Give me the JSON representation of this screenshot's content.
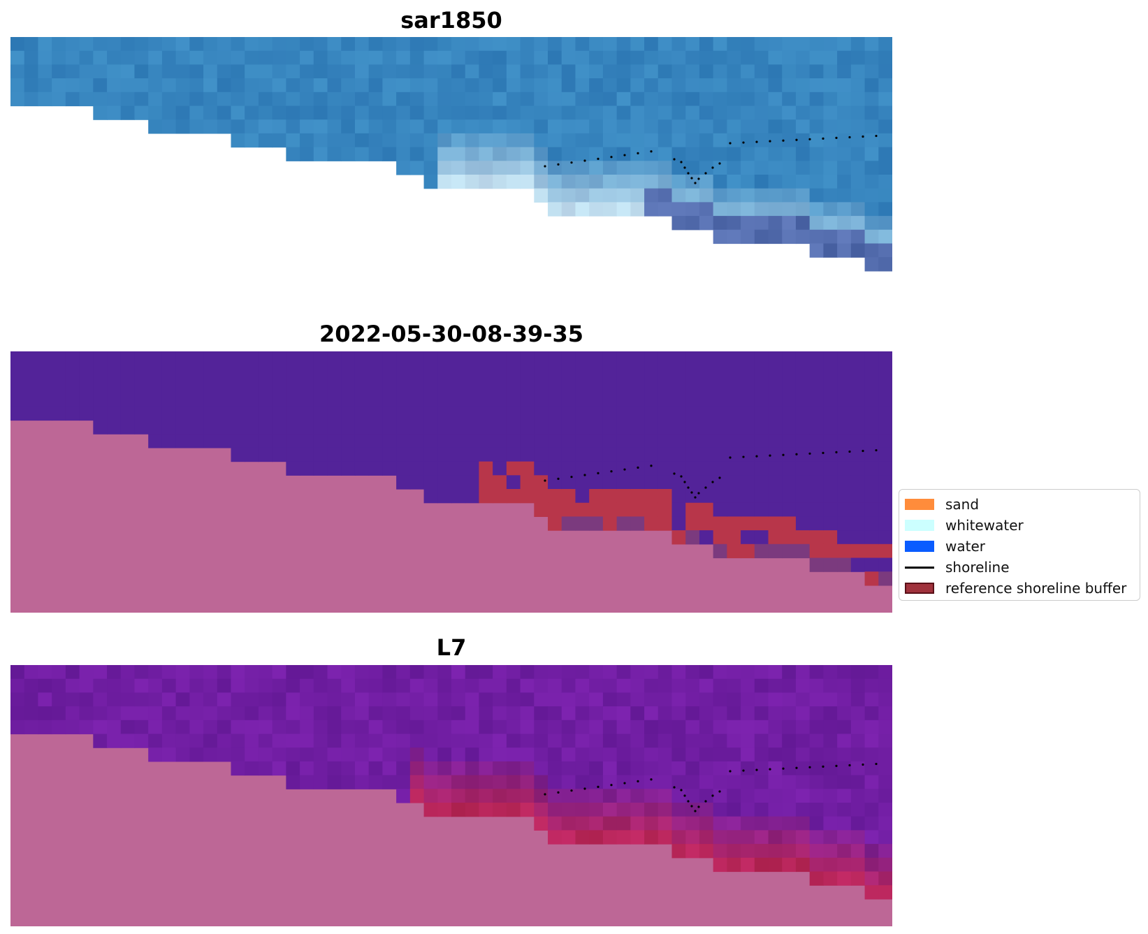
{
  "panels": [
    {
      "title": "sar1850"
    },
    {
      "title": "2022-05-30-08-39-35"
    },
    {
      "title": "L7"
    }
  ],
  "legend": {
    "items": [
      {
        "label": "sand",
        "color": "#ff8c3b",
        "kind": "patch"
      },
      {
        "label": "whitewater",
        "color": "#ccffff",
        "kind": "patch"
      },
      {
        "label": "water",
        "color": "#0a5cff",
        "kind": "patch"
      },
      {
        "label": "shoreline",
        "color": "#000000",
        "kind": "line"
      },
      {
        "label": "reference shoreline buffer",
        "color": "#a0323c",
        "kind": "patch"
      }
    ]
  },
  "colors": {
    "nodata_rgb": "#ffffff",
    "nodata_class": "#bd6796",
    "sea_class": "#532399",
    "buffer": "#b8364a",
    "shoreline": "#000000"
  }
}
